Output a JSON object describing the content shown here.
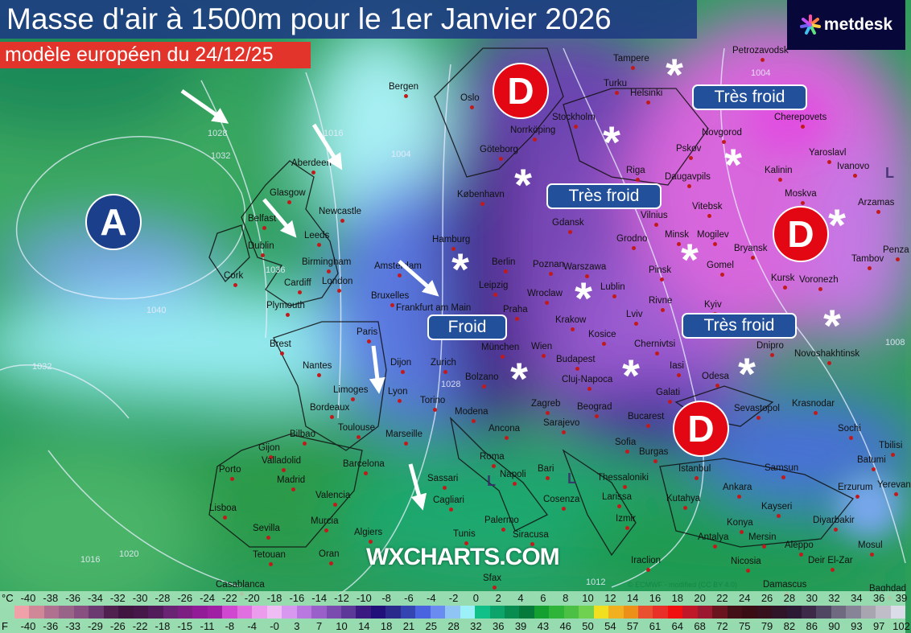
{
  "header": {
    "title": "Masse d'air à 1500m pour le 1er Janvier 2026",
    "subtitle": "modèle européen du 24/12/25"
  },
  "logo": {
    "text": "metdesk"
  },
  "watermark": "WXCHARTS.COM",
  "credit": "© ECMWF - modified (CC BY 4.0)",
  "pressure_centers": [
    {
      "label": "A",
      "color": "#1c3f8c"
    },
    {
      "label": "D",
      "color": "#e30613"
    },
    {
      "label": "D",
      "color": "#e30613"
    },
    {
      "label": "D",
      "color": "#e30613"
    }
  ],
  "annotations": [
    "Très froid",
    "Très froid",
    "Très froid",
    "Froid"
  ],
  "snow_symbol": "*",
  "low_marks": [
    "L",
    "L",
    "L"
  ],
  "isobar_labels": [
    "1028",
    "1032",
    "1016",
    "1040",
    "1036",
    "1032",
    "1004",
    "1004",
    "1008",
    "1020",
    "1016",
    "1012",
    "1028"
  ],
  "cities": [
    "Bergen",
    "Oslo",
    "Tampere",
    "Turku",
    "Helsinki",
    "Petrozavodsk",
    "Stockholm",
    "Norrköping",
    "Göteborg",
    "Cherepovets",
    "Novgorod",
    "Pskov",
    "Riga",
    "Yaroslavl",
    "Ivanovo",
    "Kalinin",
    "Moskva",
    "Aberdeen",
    "København",
    "Arzamas",
    "Glasgow",
    "Newcastle",
    "Belfast",
    "Gdansk",
    "Vilnius",
    "Vitebsk",
    "Daugavpils",
    "Leeds",
    "Dublin",
    "Hamburg",
    "Grodno",
    "Minsk",
    "Mogilev",
    "Bryansk",
    "Penza",
    "Birmingham",
    "Amsterdam",
    "Berlin",
    "Poznan",
    "Warszawa",
    "Pinsk",
    "Gomel",
    "Tambov",
    "Cork",
    "Cardiff",
    "London",
    "Leipzig",
    "Kursk",
    "Voronezh",
    "Plymouth",
    "Bruxelles",
    "Wroclaw",
    "Lublin",
    "Frankfurt am Main",
    "Praha",
    "Krakow",
    "Rivne",
    "Kyiv",
    "Paris",
    "Brest",
    "Lviv",
    "Kosice",
    "Dnipro",
    "Wien",
    "Chernivtsi",
    "Novoshakhtinsk",
    "Nantes",
    "Dijon",
    "München",
    "Budapest",
    "Zurich",
    "Iasi",
    "Limoges",
    "Lyon",
    "Bolzano",
    "Zagreb",
    "Cluj-Napoca",
    "Odesa",
    "Bordeaux",
    "Torino",
    "Galati",
    "Sevastopol",
    "Krasnodar",
    "Beograd",
    "Toulouse",
    "Modena",
    "Ancona",
    "Sarajevo",
    "Bucarest",
    "Gijon",
    "Bilbao",
    "Marseille",
    "Sofia",
    "Sochi",
    "Batumi",
    "Tbilisi",
    "Valladolid",
    "Barcelona",
    "Roma",
    "Burgas",
    "Istanbul",
    "Samsun",
    "Porto",
    "Madrid",
    "Napoli",
    "Bari",
    "Thessaloniki",
    "Sassari",
    "Erzurum",
    "Yerevan",
    "Valencia",
    "Ankara",
    "Kutahya",
    "Kayseri",
    "Lisboa",
    "Cagliari",
    "Cosenza",
    "Larissa",
    "Murcia",
    "Palermo",
    "Izmir",
    "Diyarbakir",
    "Sevilla",
    "Siracusa",
    "Konya",
    "Mersin",
    "Aleppo",
    "Mosul",
    "Algiers",
    "Tunis",
    "Oran",
    "Antalya",
    "Tetouan",
    "Iraclion",
    "Nicosia",
    "Deir El-Zar",
    "Casablanca",
    "Sfax",
    "Damascus",
    "Baghdad"
  ],
  "legend": {
    "celsius_label": "°C",
    "fahrenheit_label": "F",
    "celsius": [
      "-40",
      "-38",
      "-36",
      "-34",
      "-32",
      "-30",
      "-28",
      "-26",
      "-24",
      "-22",
      "-20",
      "-18",
      "-16",
      "-14",
      "-12",
      "-10",
      "-8",
      "-6",
      "-4",
      "-2",
      "0",
      "2",
      "4",
      "6",
      "8",
      "10",
      "12",
      "14",
      "16",
      "18",
      "20",
      "22",
      "24",
      "26",
      "28",
      "30",
      "32",
      "34",
      "36",
      "39"
    ],
    "fahrenheit": [
      "-40",
      "-36",
      "-33",
      "-29",
      "-26",
      "-22",
      "-18",
      "-15",
      "-11",
      "-8",
      "-4",
      "-0",
      "3",
      "7",
      "10",
      "14",
      "18",
      "21",
      "25",
      "28",
      "32",
      "36",
      "39",
      "43",
      "46",
      "50",
      "54",
      "57",
      "61",
      "64",
      "68",
      "72",
      "75",
      "79",
      "82",
      "86",
      "90",
      "93",
      "97",
      "102"
    ],
    "colors": [
      "#f0a0a8",
      "#d08898",
      "#b07090",
      "#986488",
      "#885080",
      "#6a3a70",
      "#50204e",
      "#401640",
      "#46184a",
      "#521c5a",
      "#6a2474",
      "#7c1e82",
      "#921c98",
      "#a020a4",
      "#d048d0",
      "#e070e0",
      "#ec9cec",
      "#f0bcf4",
      "#d898f0",
      "#b878e0",
      "#9860c8",
      "#7a4cb0",
      "#5c3898",
      "#3a1a80",
      "#22107a",
      "#2a2a8c",
      "#3444b0",
      "#4a64e0",
      "#6a8cf0",
      "#90c4f4",
      "#9cf0f8",
      "#10c088",
      "#0ca46a",
      "#088c50",
      "#067a3a",
      "#14a030",
      "#2eb438",
      "#4cc044",
      "#70d050",
      "#f0e020",
      "#f0b020",
      "#ec9018",
      "#e85030",
      "#e83028",
      "#f01010",
      "#c01828",
      "#9a1830",
      "#6a1420",
      "#441018",
      "#3a0c14",
      "#36101c",
      "#301428",
      "#2c1a34",
      "#3c2a48",
      "#504862",
      "#706a80",
      "#888498",
      "#a8a4b0",
      "#c0bcc8",
      "#dcdce8"
    ]
  }
}
